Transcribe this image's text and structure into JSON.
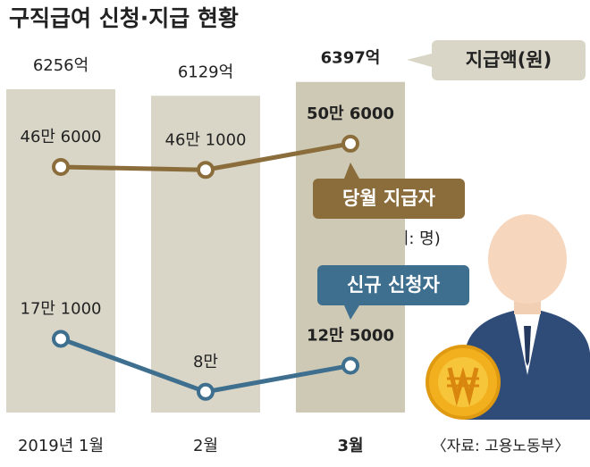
{
  "chart_data": {
    "type": "bar",
    "title": "구직급여 신청·지급 현황",
    "categories": [
      "2019년 1월",
      "2월",
      "3월"
    ],
    "series": [
      {
        "name": "지급액(원)",
        "type": "bar",
        "colors": [
          "#d9d6c7",
          "#d9d6c7",
          "#cdc9b5"
        ],
        "values": [
          6256,
          6129,
          6397
        ],
        "value_labels": [
          "6256억",
          "6129억",
          "6397억"
        ]
      },
      {
        "name": "당월 지급자",
        "type": "line",
        "axis": "y2",
        "color": "#8b6d3c",
        "values": [
          466000,
          461000,
          506000
        ],
        "value_labels": [
          "46만 6000",
          "46만 1000",
          "50만 6000"
        ]
      },
      {
        "name": "신규 신청자",
        "type": "line",
        "axis": "y2",
        "color": "#3e6f8e",
        "values": [
          171000,
          80000,
          125000
        ],
        "value_labels": [
          "17만 1000",
          "8만",
          "12만 5000"
        ]
      }
    ],
    "ylim": [
      0,
      6600
    ],
    "y2lim": [
      0,
      630000
    ],
    "unit_note": "(단위: 명)",
    "source": "〈자료: 고용노동부〉"
  }
}
